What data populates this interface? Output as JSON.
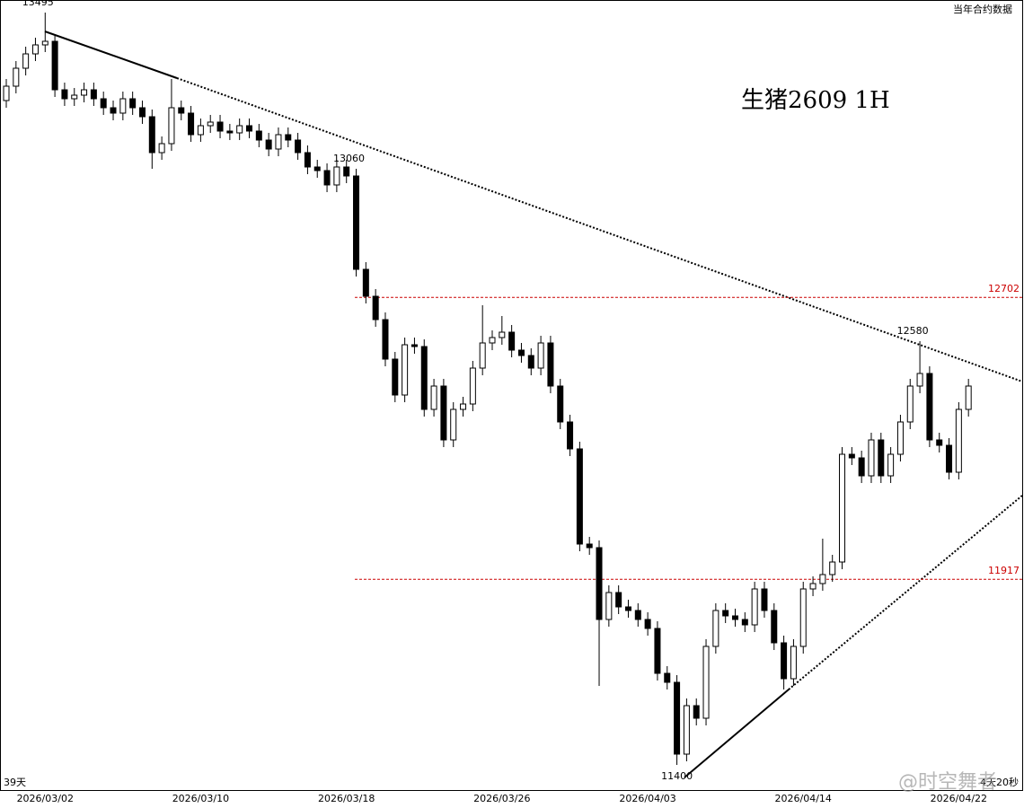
{
  "chart_data": {
    "type": "candlestick",
    "title": "生猪2609  1H",
    "subtitle": "当年合约数据",
    "corner_left": "39天",
    "corner_right": "4天20秒",
    "watermark": "@时空舞者",
    "categories": [
      null,
      null,
      null,
      null,
      "2026/03/02",
      null,
      null,
      null,
      null,
      null,
      null,
      null,
      null,
      null,
      null,
      null,
      null,
      null,
      null,
      null,
      "2026/03/10",
      null,
      null,
      null,
      null,
      null,
      null,
      null,
      null,
      null,
      null,
      null,
      null,
      null,
      null,
      "2026/03/18",
      null,
      null,
      null,
      null,
      null,
      null,
      null,
      null,
      null,
      null,
      null,
      null,
      null,
      null,
      null,
      "2026/03/26",
      null,
      null,
      null,
      null,
      null,
      null,
      null,
      null,
      null,
      null,
      null,
      null,
      null,
      null,
      "2026/04/03",
      null,
      null,
      null,
      null,
      null,
      null,
      null,
      null,
      null,
      null,
      null,
      null,
      null,
      null,
      null,
      "2026/04/14",
      null,
      null,
      null,
      null,
      null,
      null,
      null,
      null,
      null,
      null,
      null,
      null,
      null,
      null,
      null,
      "2026/04/22",
      null
    ],
    "open": [
      13250,
      13290,
      13340,
      13380,
      13405,
      13415,
      13280,
      13255,
      13265,
      13280,
      13255,
      13230,
      13215,
      13255,
      13230,
      13205,
      13105,
      13130,
      13230,
      13215,
      13155,
      13180,
      13190,
      13165,
      13160,
      13180,
      13165,
      13140,
      13115,
      13155,
      13140,
      13105,
      13065,
      13055,
      13015,
      13065,
      13040,
      12780,
      12705,
      12640,
      12530,
      12430,
      12570,
      12565,
      12390,
      12455,
      12305,
      12390,
      12405,
      12505,
      12575,
      12590,
      12605,
      12555,
      12540,
      12505,
      12575,
      12455,
      12355,
      12280,
      12015,
      12005,
      11805,
      11880,
      11840,
      11830,
      11805,
      11780,
      11655,
      11630,
      11430,
      11565,
      11530,
      11730,
      11830,
      11815,
      11805,
      11790,
      11890,
      11830,
      11740,
      11640,
      11730,
      11890,
      11905,
      11930,
      11965,
      12265,
      12255,
      12205,
      12305,
      12205,
      12265,
      12355,
      12455,
      12490,
      12305,
      12290,
      12215,
      12390
    ],
    "high": [
      13310,
      13360,
      13400,
      13425,
      13495,
      13435,
      13300,
      13285,
      13300,
      13300,
      13275,
      13250,
      13275,
      13275,
      13250,
      13225,
      13150,
      13310,
      13250,
      13235,
      13200,
      13210,
      13210,
      13185,
      13200,
      13200,
      13185,
      13160,
      13175,
      13175,
      13160,
      13125,
      13085,
      13075,
      13085,
      13085,
      13060,
      12800,
      12725,
      12660,
      12550,
      12590,
      12590,
      12585,
      12475,
      12475,
      12410,
      12425,
      12525,
      12680,
      12610,
      12650,
      12625,
      12575,
      12560,
      12595,
      12595,
      12475,
      12375,
      12300,
      12035,
      12025,
      11900,
      11900,
      11860,
      11850,
      11825,
      11800,
      11675,
      11650,
      11585,
      11585,
      11750,
      11850,
      11850,
      11835,
      11825,
      11910,
      11910,
      11850,
      11760,
      11750,
      11910,
      11925,
      12030,
      11985,
      12285,
      12285,
      12275,
      12325,
      12325,
      12285,
      12375,
      12475,
      12580,
      12510,
      12325,
      12310,
      12410,
      12475
    ],
    "low": [
      13230,
      13270,
      13320,
      13360,
      13385,
      13260,
      13235,
      13235,
      13245,
      13235,
      13210,
      13195,
      13195,
      13210,
      13185,
      13060,
      13085,
      13110,
      13195,
      13135,
      13135,
      13160,
      13145,
      13140,
      13140,
      13145,
      13120,
      13095,
      13095,
      13120,
      13085,
      13045,
      13035,
      12995,
      12995,
      13020,
      12760,
      12685,
      12620,
      12510,
      12410,
      12410,
      12545,
      12370,
      12370,
      12285,
      12285,
      12370,
      12385,
      12485,
      12555,
      12570,
      12535,
      12520,
      12485,
      12485,
      12435,
      12335,
      12260,
      11995,
      11985,
      11620,
      11785,
      11820,
      11810,
      11785,
      11760,
      11635,
      11610,
      11400,
      11410,
      11510,
      11510,
      11710,
      11795,
      11785,
      11770,
      11770,
      11810,
      11720,
      11610,
      11620,
      11710,
      11870,
      11885,
      11910,
      11945,
      12235,
      12185,
      12185,
      12185,
      12185,
      12245,
      12335,
      12435,
      12285,
      12270,
      12195,
      12195,
      12370
    ],
    "close": [
      13290,
      13340,
      13380,
      13405,
      13415,
      13280,
      13255,
      13265,
      13280,
      13255,
      13230,
      13215,
      13255,
      13230,
      13205,
      13105,
      13130,
      13230,
      13215,
      13155,
      13180,
      13190,
      13165,
      13160,
      13180,
      13165,
      13140,
      13115,
      13155,
      13140,
      13105,
      13065,
      13055,
      13015,
      13065,
      13040,
      12780,
      12705,
      12640,
      12530,
      12430,
      12570,
      12565,
      12390,
      12455,
      12305,
      12390,
      12405,
      12505,
      12575,
      12590,
      12605,
      12555,
      12540,
      12505,
      12575,
      12455,
      12355,
      12280,
      12015,
      12005,
      11805,
      11880,
      11840,
      11830,
      11805,
      11780,
      11655,
      11630,
      11430,
      11565,
      11530,
      11730,
      11830,
      11815,
      11805,
      11790,
      11890,
      11830,
      11740,
      11640,
      11730,
      11890,
      11905,
      11930,
      11965,
      12265,
      12255,
      12205,
      12305,
      12205,
      12265,
      12355,
      12455,
      12490,
      12305,
      12290,
      12215,
      12390,
      12455
    ],
    "up_color": "#ffffff",
    "down_color": "#000000",
    "hlines": [
      12702,
      11917
    ],
    "hline_color": "#cc0000",
    "annotations": [
      13495,
      13060,
      12580,
      11400
    ],
    "ylim": [
      11330,
      13530
    ]
  }
}
